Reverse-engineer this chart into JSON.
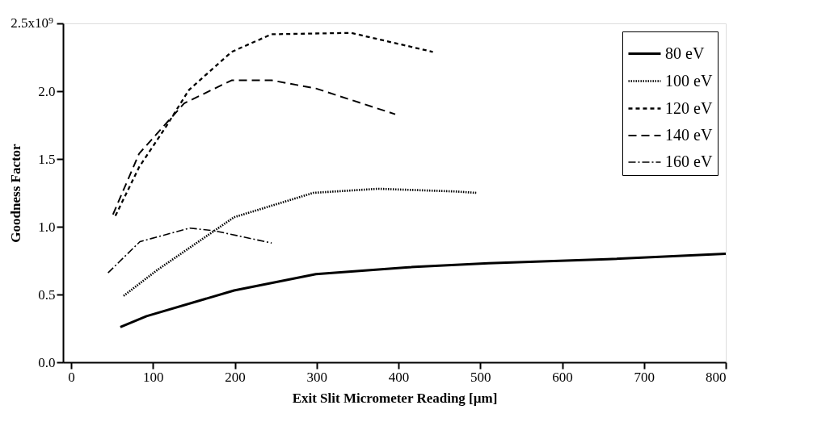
{
  "chart_data": {
    "type": "line",
    "xlabel": "Exit Slit Micrometer Reading [µm]",
    "ylabel": "Goodness Factor",
    "xlim": [
      -10,
      800
    ],
    "xticks": [
      0,
      100,
      200,
      300,
      400,
      500,
      600,
      700,
      800
    ],
    "ylim": [
      0,
      2.5
    ],
    "yticks": [
      {
        "value": 0,
        "label": "0.0"
      },
      {
        "value": 0.5,
        "label": "0.5"
      },
      {
        "value": 1,
        "label": "1.0"
      },
      {
        "value": 1.5,
        "label": "1.5"
      },
      {
        "value": 2,
        "label": "2.0"
      },
      {
        "value": 2.5,
        "label": null
      }
    ],
    "annotations": [
      "2.5x10⁹"
    ],
    "grid": false,
    "legend": "top right",
    "marker": "none",
    "series": [
      {
        "name": "80 eV",
        "color": "#000000",
        "line_style": "solid",
        "x": [
          60,
          92,
          199,
          299,
          409,
          510,
          655,
          800
        ],
        "values": [
          0.26,
          0.34,
          0.53,
          0.65,
          0.7,
          0.73,
          0.76,
          0.8
        ]
      },
      {
        "name": "100 eV",
        "color": "#000000",
        "line_style": "dotted",
        "x": [
          64,
          105,
          199,
          296,
          375,
          470,
          495
        ],
        "values": [
          0.49,
          0.68,
          1.07,
          1.25,
          1.28,
          1.26,
          1.25
        ]
      },
      {
        "name": "120 eV",
        "color": "#000000",
        "line_style": "dashed",
        "x": [
          54,
          83,
          115,
          144,
          196,
          245,
          342,
          442
        ],
        "values": [
          1.08,
          1.44,
          1.73,
          2.01,
          2.29,
          2.42,
          2.43,
          2.29
        ]
      },
      {
        "name": "140 eV",
        "color": "#000000",
        "line_style": "dashed",
        "x": [
          51,
          83,
          138,
          196,
          245,
          299,
          396
        ],
        "values": [
          1.09,
          1.54,
          1.91,
          2.08,
          2.08,
          2.02,
          1.83
        ]
      },
      {
        "name": "160 eV",
        "color": "#000000",
        "line_style": "dashed",
        "x": [
          45,
          84,
          145,
          175,
          245
        ],
        "values": [
          0.66,
          0.89,
          0.99,
          0.97,
          0.88
        ]
      }
    ]
  }
}
